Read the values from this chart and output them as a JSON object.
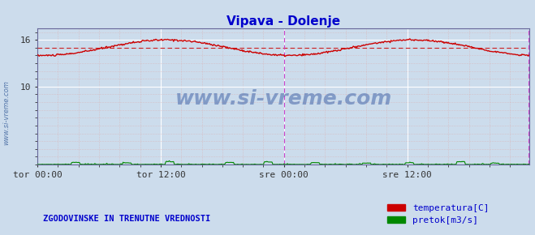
{
  "title": "Vipava - Dolenje",
  "title_color": "#0000cc",
  "title_fontsize": 11,
  "bg_color": "#ccdcec",
  "plot_bg_color": "#ccdcec",
  "grid_color": "#ffffff",
  "grid_minor_color": "#ddbbbb",
  "xlim": [
    0,
    575
  ],
  "ylim": [
    0,
    17.5
  ],
  "yticks": [
    10,
    16
  ],
  "xtick_labels": [
    "tor 00:00",
    "tor 12:00",
    "sre 00:00",
    "sre 12:00"
  ],
  "xtick_positions": [
    0,
    144,
    288,
    432
  ],
  "temp_color": "#cc0000",
  "temp_avg_color": "#cc0000",
  "flow_color": "#008800",
  "axis_color": "#4444cc",
  "vline_color": "#cc44cc",
  "watermark": "www.si-vreme.com",
  "watermark_color": "#4466aa",
  "label_text": "ZGODOVINSKE IN TRENUTNE VREDNOSTI",
  "label_color": "#0000cc",
  "legend_temp": "temperatura[C]",
  "legend_flow": "pretok[m3/s]",
  "avg_value": 15.0,
  "end_vline_x": 574,
  "mid_vline_x": 288,
  "n_points": 576,
  "temp_min": 14.0,
  "temp_max": 16.2,
  "flow_max_display": 0.6
}
